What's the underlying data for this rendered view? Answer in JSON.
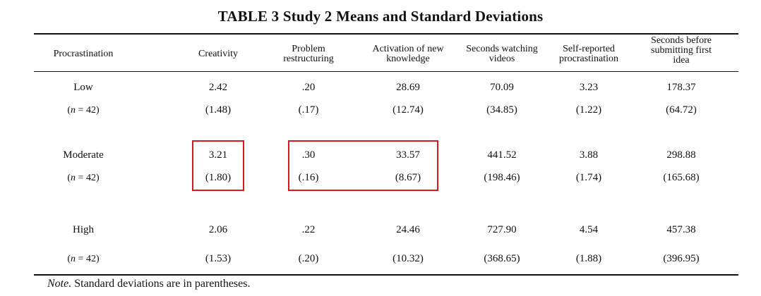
{
  "table": {
    "title": "TABLE 3  Study 2 Means and Standard Deviations",
    "columns": [
      "Procrastination",
      "Creativity",
      "Problem restructuring",
      "Activation of new knowledge",
      "Seconds watching videos",
      "Self-reported procrastination",
      "Seconds before submitting first idea"
    ],
    "rows": [
      {
        "group": "Low",
        "n_label": "n",
        "n_value": " = 42)",
        "means": [
          "2.42",
          ".20",
          "28.69",
          "70.09",
          "3.23",
          "178.37"
        ],
        "sds": [
          "(1.48)",
          "(.17)",
          "(12.74)",
          "(34.85)",
          "(1.22)",
          "(64.72)"
        ]
      },
      {
        "group": "Moderate",
        "n_label": "n",
        "n_value": " = 42)",
        "means": [
          "3.21",
          ".30",
          "33.57",
          "441.52",
          "3.88",
          "298.88"
        ],
        "sds": [
          "(1.80)",
          "(.16)",
          "(8.67)",
          "(198.46)",
          "(1.74)",
          "(165.68)"
        ]
      },
      {
        "group": "High",
        "n_label": "n",
        "n_value": " = 42)",
        "means": [
          "2.06",
          ".22",
          "24.46",
          "727.90",
          "4.54",
          "457.38"
        ],
        "sds": [
          "(1.53)",
          "(.20)",
          "(10.32)",
          "(368.65)",
          "(1.88)",
          "(396.95)"
        ]
      }
    ],
    "note_label": "Note.",
    "note_text": " Standard deviations are in parentheses.",
    "highlight_color": "#d7191c"
  }
}
